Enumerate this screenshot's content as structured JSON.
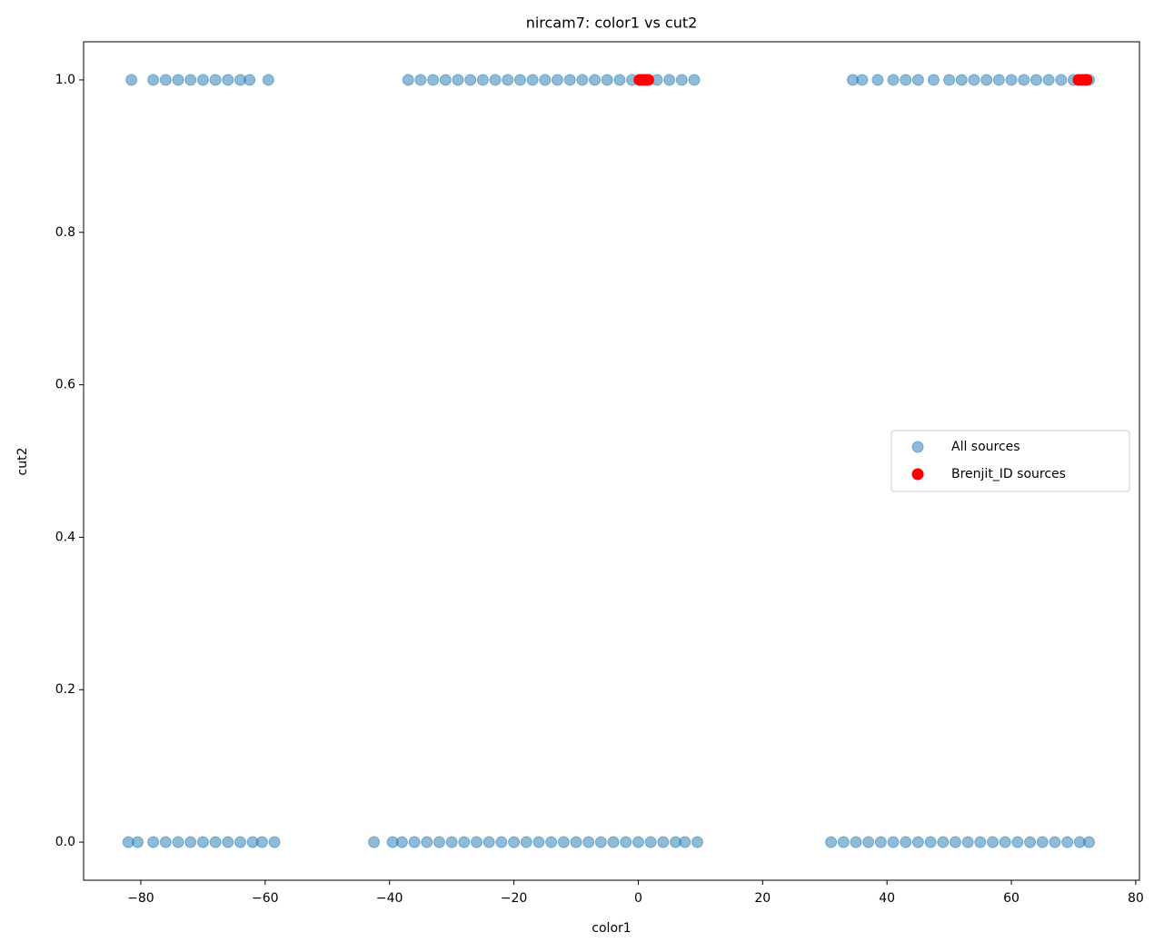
{
  "chart_data": {
    "type": "scatter",
    "title": "nircam7: color1 vs cut2",
    "x_label": "color1",
    "y_label": "cut2",
    "xlim": [
      -89.2,
      80.6
    ],
    "ylim": [
      -0.05,
      1.05
    ],
    "xticks": [
      {
        "value": -80,
        "label": "−80"
      },
      {
        "value": -60,
        "label": "−60"
      },
      {
        "value": -40,
        "label": "−40"
      },
      {
        "value": -20,
        "label": "−20"
      },
      0,
      20,
      40,
      60,
      80
    ],
    "yticks": [
      {
        "value": 0,
        "label": "0.0"
      },
      0.2,
      0.4,
      0.6,
      0.8,
      {
        "value": 1,
        "label": "1.0"
      }
    ],
    "legend": "center right",
    "series": [
      {
        "name": "All sources",
        "color": "#1f77b4",
        "alpha": 0.5,
        "x": [
          -81.5,
          -78,
          -76,
          -74,
          -72,
          -70,
          -68,
          -66,
          -64,
          -62.5,
          -59.5,
          -37,
          -35,
          -33,
          -31,
          -29,
          -27,
          -25,
          -23,
          -21,
          -19,
          -17,
          -15,
          -13,
          -11,
          -9,
          -7,
          -5,
          -3,
          -1,
          1,
          3,
          5,
          7,
          9,
          34.5,
          36,
          38.5,
          41,
          43,
          45,
          47.5,
          50,
          52,
          54,
          56,
          58,
          60,
          62,
          64,
          66,
          68,
          70,
          72.5,
          -82,
          -80.5,
          -78,
          -76,
          -74,
          -72,
          -70,
          -68,
          -66,
          -64,
          -62,
          -60.5,
          -58.5,
          -42.5,
          -39.5,
          -38,
          -36,
          -34,
          -32,
          -30,
          -28,
          -26,
          -24,
          -22,
          -20,
          -18,
          -16,
          -14,
          -12,
          -10,
          -8,
          -6,
          -4,
          -2,
          0,
          2,
          4,
          6,
          7.5,
          9.5,
          31,
          33,
          35,
          37,
          39,
          41,
          43,
          45,
          47,
          49,
          51,
          53,
          55,
          57,
          59,
          61,
          63,
          65,
          67,
          69,
          71,
          72.5
        ],
        "values": [
          1,
          1,
          1,
          1,
          1,
          1,
          1,
          1,
          1,
          1,
          1,
          1,
          1,
          1,
          1,
          1,
          1,
          1,
          1,
          1,
          1,
          1,
          1,
          1,
          1,
          1,
          1,
          1,
          1,
          1,
          1,
          1,
          1,
          1,
          1,
          1,
          1,
          1,
          1,
          1,
          1,
          1,
          1,
          1,
          1,
          1,
          1,
          1,
          1,
          1,
          1,
          1,
          1,
          1,
          0,
          0,
          0,
          0,
          0,
          0,
          0,
          0,
          0,
          0,
          0,
          0,
          0,
          0,
          0,
          0,
          0,
          0,
          0,
          0,
          0,
          0,
          0,
          0,
          0,
          0,
          0,
          0,
          0,
          0,
          0,
          0,
          0,
          0,
          0,
          0,
          0,
          0,
          0,
          0,
          0,
          0,
          0,
          0,
          0,
          0,
          0,
          0,
          0,
          0,
          0,
          0,
          0,
          0,
          0,
          0,
          0,
          0,
          0,
          0,
          0,
          0
        ]
      },
      {
        "name": "Brenjit_ID sources",
        "color": "red",
        "alpha": 1,
        "x": [
          0.2,
          0.7,
          1.2,
          1.6,
          70.8,
          71.3,
          71.8,
          72.1
        ],
        "values": [
          1,
          1,
          1,
          1,
          1,
          1,
          1,
          1
        ]
      }
    ]
  }
}
